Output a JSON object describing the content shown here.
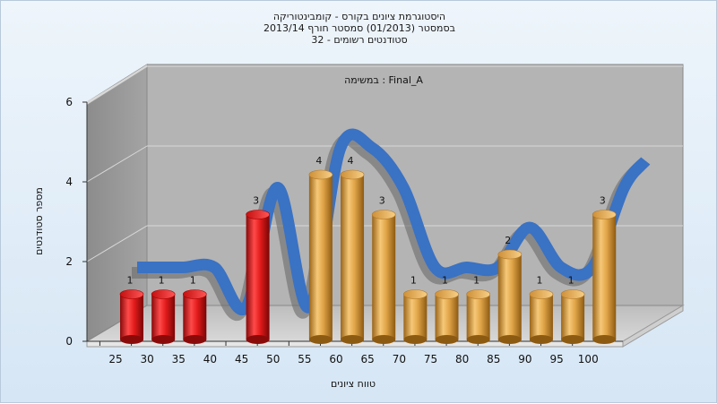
{
  "chart_data": {
    "type": "bar",
    "title_lines": [
      "היסטוגרמת ציונים בקורס - קומבינטוריקה",
      "בסמסטר  (01/2013)  סמסטר חורף 2013/14",
      "סטודנטים רשומים - 32"
    ],
    "inner_label": "במשימה : Final_A",
    "xlabel": "טווח ציונים",
    "ylabel": "מספר סטודנטים",
    "ylim": [
      0,
      6
    ],
    "yticks": [
      0,
      2,
      4,
      6
    ],
    "categories": [
      "25",
      "30",
      "35",
      "40",
      "45",
      "50",
      "55",
      "60",
      "65",
      "70",
      "75",
      "80",
      "85",
      "90",
      "95",
      "100"
    ],
    "values": [
      1,
      1,
      1,
      0,
      3,
      0,
      4,
      4,
      3,
      1,
      1,
      1,
      2,
      1,
      1,
      3
    ],
    "bar_colors": {
      "below_threshold": "#e02020",
      "above_threshold": "#e0a040"
    },
    "threshold_category": "55",
    "trend_color": "#3a72c4",
    "grid": true,
    "legend": "none"
  }
}
